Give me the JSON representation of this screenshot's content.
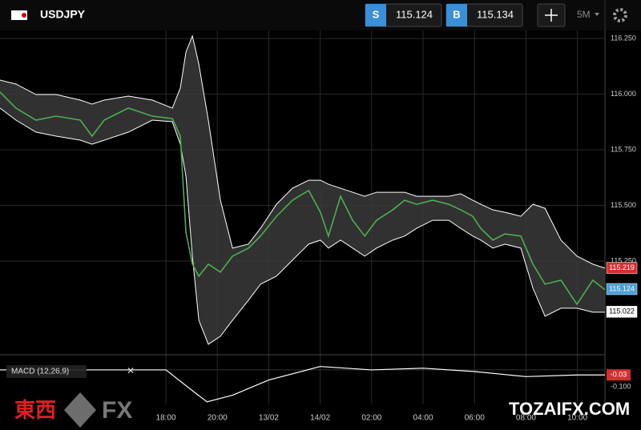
{
  "header": {
    "symbol": "USDJPY",
    "sell_label": "S",
    "sell_price": "115.124",
    "buy_label": "B",
    "buy_price": "115.134",
    "timeframe": "5M"
  },
  "chart_data": {
    "type": "line",
    "x": [
      -6.45,
      -5.83,
      -5.05,
      -4.27,
      -3.33,
      -2.87,
      -2.4,
      -1.46,
      -0.53,
      0.25,
      0.56,
      0.78,
      1.03,
      1.28,
      1.65,
      2.12,
      2.59,
      3.21,
      3.68,
      4.3,
      4.92,
      5.55,
      6.01,
      6.32,
      6.79,
      7.26,
      7.73,
      8.19,
      8.82,
      9.28,
      9.75,
      10.37,
      11.0,
      11.46,
      11.93,
      12.24,
      12.71,
      13.18,
      13.8,
      14.27,
      14.74,
      15.36,
      15.98,
      16.6,
      17.07
    ],
    "series": [
      {
        "color": "#ffffff",
        "values": [
          116.063,
          116.045,
          115.998,
          115.998,
          115.973,
          115.955,
          115.973,
          115.991,
          115.973,
          115.937,
          116.027,
          116.189,
          116.261,
          116.135,
          115.883,
          115.523,
          115.308,
          115.326,
          115.397,
          115.505,
          115.577,
          115.613,
          115.613,
          115.595,
          115.577,
          115.559,
          115.541,
          115.559,
          115.559,
          115.559,
          115.541,
          115.541,
          115.541,
          115.552,
          115.523,
          115.505,
          115.48,
          115.469,
          115.451,
          115.505,
          115.487,
          115.344,
          115.272,
          115.236,
          115.218
        ]
      },
      {
        "color": "#ffffff",
        "values": [
          115.937,
          115.883,
          115.829,
          115.811,
          115.793,
          115.775,
          115.793,
          115.829,
          115.883,
          115.876,
          115.775,
          115.631,
          115.272,
          114.984,
          114.876,
          114.912,
          114.984,
          115.074,
          115.146,
          115.182,
          115.254,
          115.326,
          115.344,
          115.308,
          115.344,
          115.308,
          115.272,
          115.308,
          115.344,
          115.362,
          115.397,
          115.433,
          115.433,
          115.397,
          115.362,
          115.344,
          115.308,
          115.326,
          115.308,
          115.128,
          115.002,
          115.038,
          115.038,
          115.02,
          115.02
        ]
      },
      {
        "color": "#4caf50",
        "values": [
          116.009,
          115.937,
          115.883,
          115.901,
          115.883,
          115.811,
          115.883,
          115.937,
          115.901,
          115.89,
          115.811,
          115.379,
          115.236,
          115.182,
          115.236,
          115.2,
          115.272,
          115.308,
          115.362,
          115.451,
          115.523,
          115.567,
          115.469,
          115.362,
          115.541,
          115.433,
          115.362,
          115.433,
          115.48,
          115.523,
          115.505,
          115.523,
          115.505,
          115.48,
          115.451,
          115.397,
          115.344,
          115.372,
          115.362,
          115.236,
          115.146,
          115.164,
          115.056,
          115.164,
          115.121
        ]
      }
    ],
    "xlim": [
      -6.45,
      17.07
    ],
    "xticks": [
      {
        "value": 0,
        "label": "18:00"
      },
      {
        "value": 2,
        "label": "20:00"
      },
      {
        "value": 4,
        "label": "13/02"
      },
      {
        "value": 6,
        "label": "14/02"
      },
      {
        "value": 8,
        "label": "02:00"
      },
      {
        "value": 10,
        "label": "04:00"
      },
      {
        "value": 12,
        "label": "06:00"
      },
      {
        "value": 14,
        "label": "08:00"
      },
      {
        "value": 16,
        "label": "10:00"
      }
    ],
    "ylim": [
      114.829,
      116.286
    ],
    "yticks": [
      {
        "value": 116.25,
        "label": "116.250"
      },
      {
        "value": 116,
        "label": "116.000"
      },
      {
        "value": 115.75,
        "label": "115.750"
      },
      {
        "value": 115.5,
        "label": "115.500"
      },
      {
        "value": 115.25,
        "label": "115.250"
      }
    ],
    "price_labels": [
      {
        "value": 115.219,
        "label": "115.219",
        "color": "#d32f2f"
      },
      {
        "value": 115.124,
        "label": "115.124",
        "color": "#4a9fd8"
      },
      {
        "value": 115.022,
        "label": "115.022",
        "color": "#ffffff"
      }
    ],
    "grid": true
  },
  "macd": {
    "title": "MACD (12,26,9)",
    "x": [
      -6.45,
      0,
      1.0,
      1.6,
      2.6,
      4,
      6,
      8,
      10,
      12,
      14,
      16,
      17.07
    ],
    "values": [
      0,
      0,
      -0.12,
      -0.19,
      -0.15,
      -0.06,
      0.02,
      0,
      0.01,
      -0.01,
      -0.04,
      -0.03,
      -0.03
    ],
    "color": "#ffffff",
    "ylim": [
      -0.205,
      0.09
    ],
    "yticks": [
      {
        "value": -0.1,
        "label": "-0.100"
      }
    ],
    "last_value": {
      "value": -0.03,
      "label": "-0.03"
    }
  },
  "watermark": {
    "left_cjk": "東西",
    "left_latin": "FX",
    "right": "TOZAIFX.COM"
  }
}
